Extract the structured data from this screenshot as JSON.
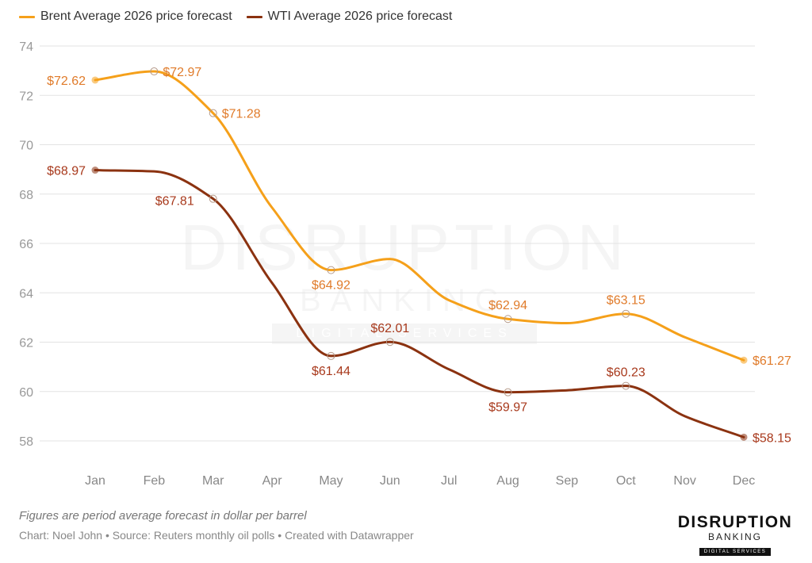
{
  "chart_data": {
    "type": "line",
    "title": "",
    "xlabel": "",
    "ylabel": "",
    "categories": [
      "Jan",
      "Feb",
      "Mar",
      "Apr",
      "May",
      "Jun",
      "Jul",
      "Aug",
      "Sep",
      "Oct",
      "Nov",
      "Dec"
    ],
    "ylim": [
      57,
      74
    ],
    "yticks": [
      58,
      60,
      62,
      64,
      66,
      68,
      70,
      72,
      74
    ],
    "grid": true,
    "legend_position": "top-left",
    "series": [
      {
        "name": "Brent Average 2026 price forecast",
        "color": "#f5a01a",
        "label_color": "#e07b2a",
        "values": [
          72.62,
          72.97,
          71.28,
          67.45,
          64.92,
          65.37,
          63.7,
          62.94,
          62.77,
          63.15,
          62.2,
          61.27
        ],
        "labels": [
          {
            "index": 0,
            "text": "$72.62",
            "pos": "left"
          },
          {
            "index": 1,
            "text": "$72.97",
            "pos": "right"
          },
          {
            "index": 2,
            "text": "$71.28",
            "pos": "right"
          },
          {
            "index": 4,
            "text": "$64.92",
            "pos": "below"
          },
          {
            "index": 7,
            "text": "$62.94",
            "pos": "above"
          },
          {
            "index": 9,
            "text": "$63.15",
            "pos": "above"
          },
          {
            "index": 11,
            "text": "$61.27",
            "pos": "right"
          }
        ]
      },
      {
        "name": "WTI Average 2026 price forecast",
        "color": "#8b3210",
        "label_color": "#a8391c",
        "values": [
          68.97,
          68.92,
          67.81,
          64.4,
          61.44,
          62.01,
          60.9,
          59.97,
          60.05,
          60.23,
          59.0,
          58.15
        ],
        "labels": [
          {
            "index": 0,
            "text": "$68.97",
            "pos": "left"
          },
          {
            "index": 2,
            "text": "$67.81",
            "pos": "below-left"
          },
          {
            "index": 4,
            "text": "$61.44",
            "pos": "below"
          },
          {
            "index": 5,
            "text": "$62.01",
            "pos": "above"
          },
          {
            "index": 7,
            "text": "$59.97",
            "pos": "below"
          },
          {
            "index": 9,
            "text": "$60.23",
            "pos": "above"
          },
          {
            "index": 11,
            "text": "$58.15",
            "pos": "right"
          }
        ]
      }
    ]
  },
  "legend": [
    {
      "label": "Brent Average 2026 price forecast",
      "color": "#f5a01a"
    },
    {
      "label": "WTI Average 2026 price forecast",
      "color": "#8b3210"
    }
  ],
  "footer": {
    "note": "Figures are period average forecast in dollar per barrel",
    "credit": "Chart: Noel John • Source: Reuters monthly oil polls • Created with Datawrapper"
  },
  "logo": {
    "main": "DISRUPTION",
    "sub": "BANKING",
    "badge": "DIGITAL SERVICES"
  },
  "watermark": {
    "main": "DISRUPTION",
    "sub": "BANKING",
    "badge": "DIGITAL SERVICES"
  }
}
